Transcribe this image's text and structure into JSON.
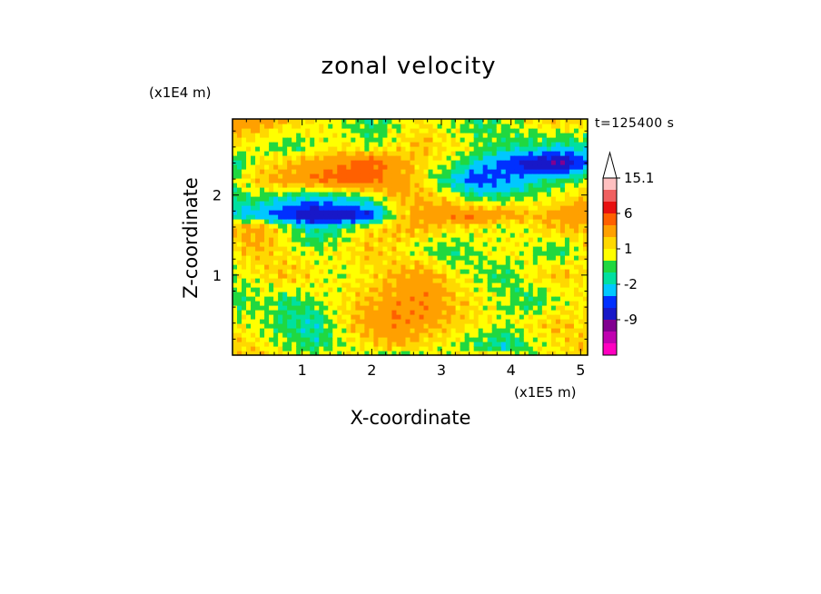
{
  "chart_data": {
    "type": "heatmap",
    "title": "zonal velocity",
    "xlabel": "X-coordinate",
    "ylabel": "Z-coordinate",
    "x_unit": "(x1E5 m)",
    "y_unit": "(x1E4 m)",
    "time_label": "t=125400 s",
    "xlim": [
      0,
      5.1
    ],
    "ylim": [
      0,
      2.95
    ],
    "x_ticks": [
      "1",
      "2",
      "3",
      "4",
      "5"
    ],
    "x_tick_values": [
      1,
      2,
      3,
      4,
      5
    ],
    "y_ticks": [
      "1",
      "2"
    ],
    "y_tick_values": [
      1,
      2
    ],
    "colorbar": {
      "labels": [
        "15.1",
        "6",
        "1",
        "-2",
        "-9"
      ],
      "label_values": [
        15.1,
        6,
        1,
        -2,
        -9
      ],
      "levels": [
        -15,
        -12,
        -9,
        -6,
        -4,
        -2,
        -1,
        0,
        1,
        2,
        4,
        6,
        9,
        12,
        15.1
      ],
      "colors": [
        "#ff00c0",
        "#c000b0",
        "#800090",
        "#1818c8",
        "#0030ff",
        "#00c8ff",
        "#00e0a0",
        "#20d840",
        "#ffff00",
        "#ffd800",
        "#ffa000",
        "#ff6000",
        "#e81010",
        "#f06060",
        "#ffc0c0"
      ],
      "extend": "max"
    },
    "bands": [
      {
        "z": 2.95,
        "u": [
          3,
          3,
          2,
          1,
          0,
          -1,
          0,
          1,
          0,
          -1,
          0,
          1,
          2,
          1
        ]
      },
      {
        "z": 2.6,
        "u": [
          1,
          0,
          -1,
          0,
          1,
          0,
          1,
          2,
          1,
          0,
          -1,
          -1,
          -2,
          -1
        ]
      },
      {
        "z": 2.4,
        "u": [
          -2,
          1,
          2,
          3,
          4,
          5,
          3,
          1,
          0,
          -2,
          -5,
          -8,
          -10,
          -4
        ]
      },
      {
        "z": 2.2,
        "u": [
          0,
          2,
          3,
          4,
          5,
          5,
          3,
          1,
          -2,
          -6,
          -4,
          -2,
          -1,
          0
        ]
      },
      {
        "z": 1.75,
        "u": [
          -2,
          -3,
          -6,
          -9,
          -8,
          -6,
          1,
          3,
          4,
          4,
          3,
          2,
          3,
          4
        ]
      },
      {
        "z": 1.6,
        "u": [
          2,
          3,
          0,
          -2,
          -1,
          1,
          2,
          2,
          1,
          1,
          0,
          1,
          2,
          2
        ]
      },
      {
        "z": 1.3,
        "u": [
          1,
          2,
          1,
          0,
          1,
          2,
          1,
          0,
          -1,
          0,
          1,
          0,
          -1,
          1
        ]
      },
      {
        "z": 1.0,
        "u": [
          0,
          1,
          2,
          1,
          0,
          1,
          2,
          3,
          1,
          0,
          -1,
          1,
          2,
          1
        ]
      },
      {
        "z": 0.7,
        "u": [
          -1,
          0,
          -1,
          0,
          1,
          2,
          3,
          4,
          2,
          1,
          0,
          -1,
          0,
          1
        ]
      },
      {
        "z": 0.4,
        "u": [
          1,
          0,
          -1,
          -2,
          1,
          3,
          4,
          3,
          2,
          1,
          0,
          1,
          2,
          1
        ]
      },
      {
        "z": 0.1,
        "u": [
          2,
          1,
          0,
          -1,
          0,
          1,
          2,
          1,
          0,
          -1,
          -2,
          0,
          1,
          2
        ]
      },
      {
        "z": 0.0,
        "u": [
          1,
          2,
          1,
          0,
          1,
          0,
          -1,
          0,
          1,
          2,
          1,
          0,
          1,
          2
        ]
      }
    ]
  }
}
